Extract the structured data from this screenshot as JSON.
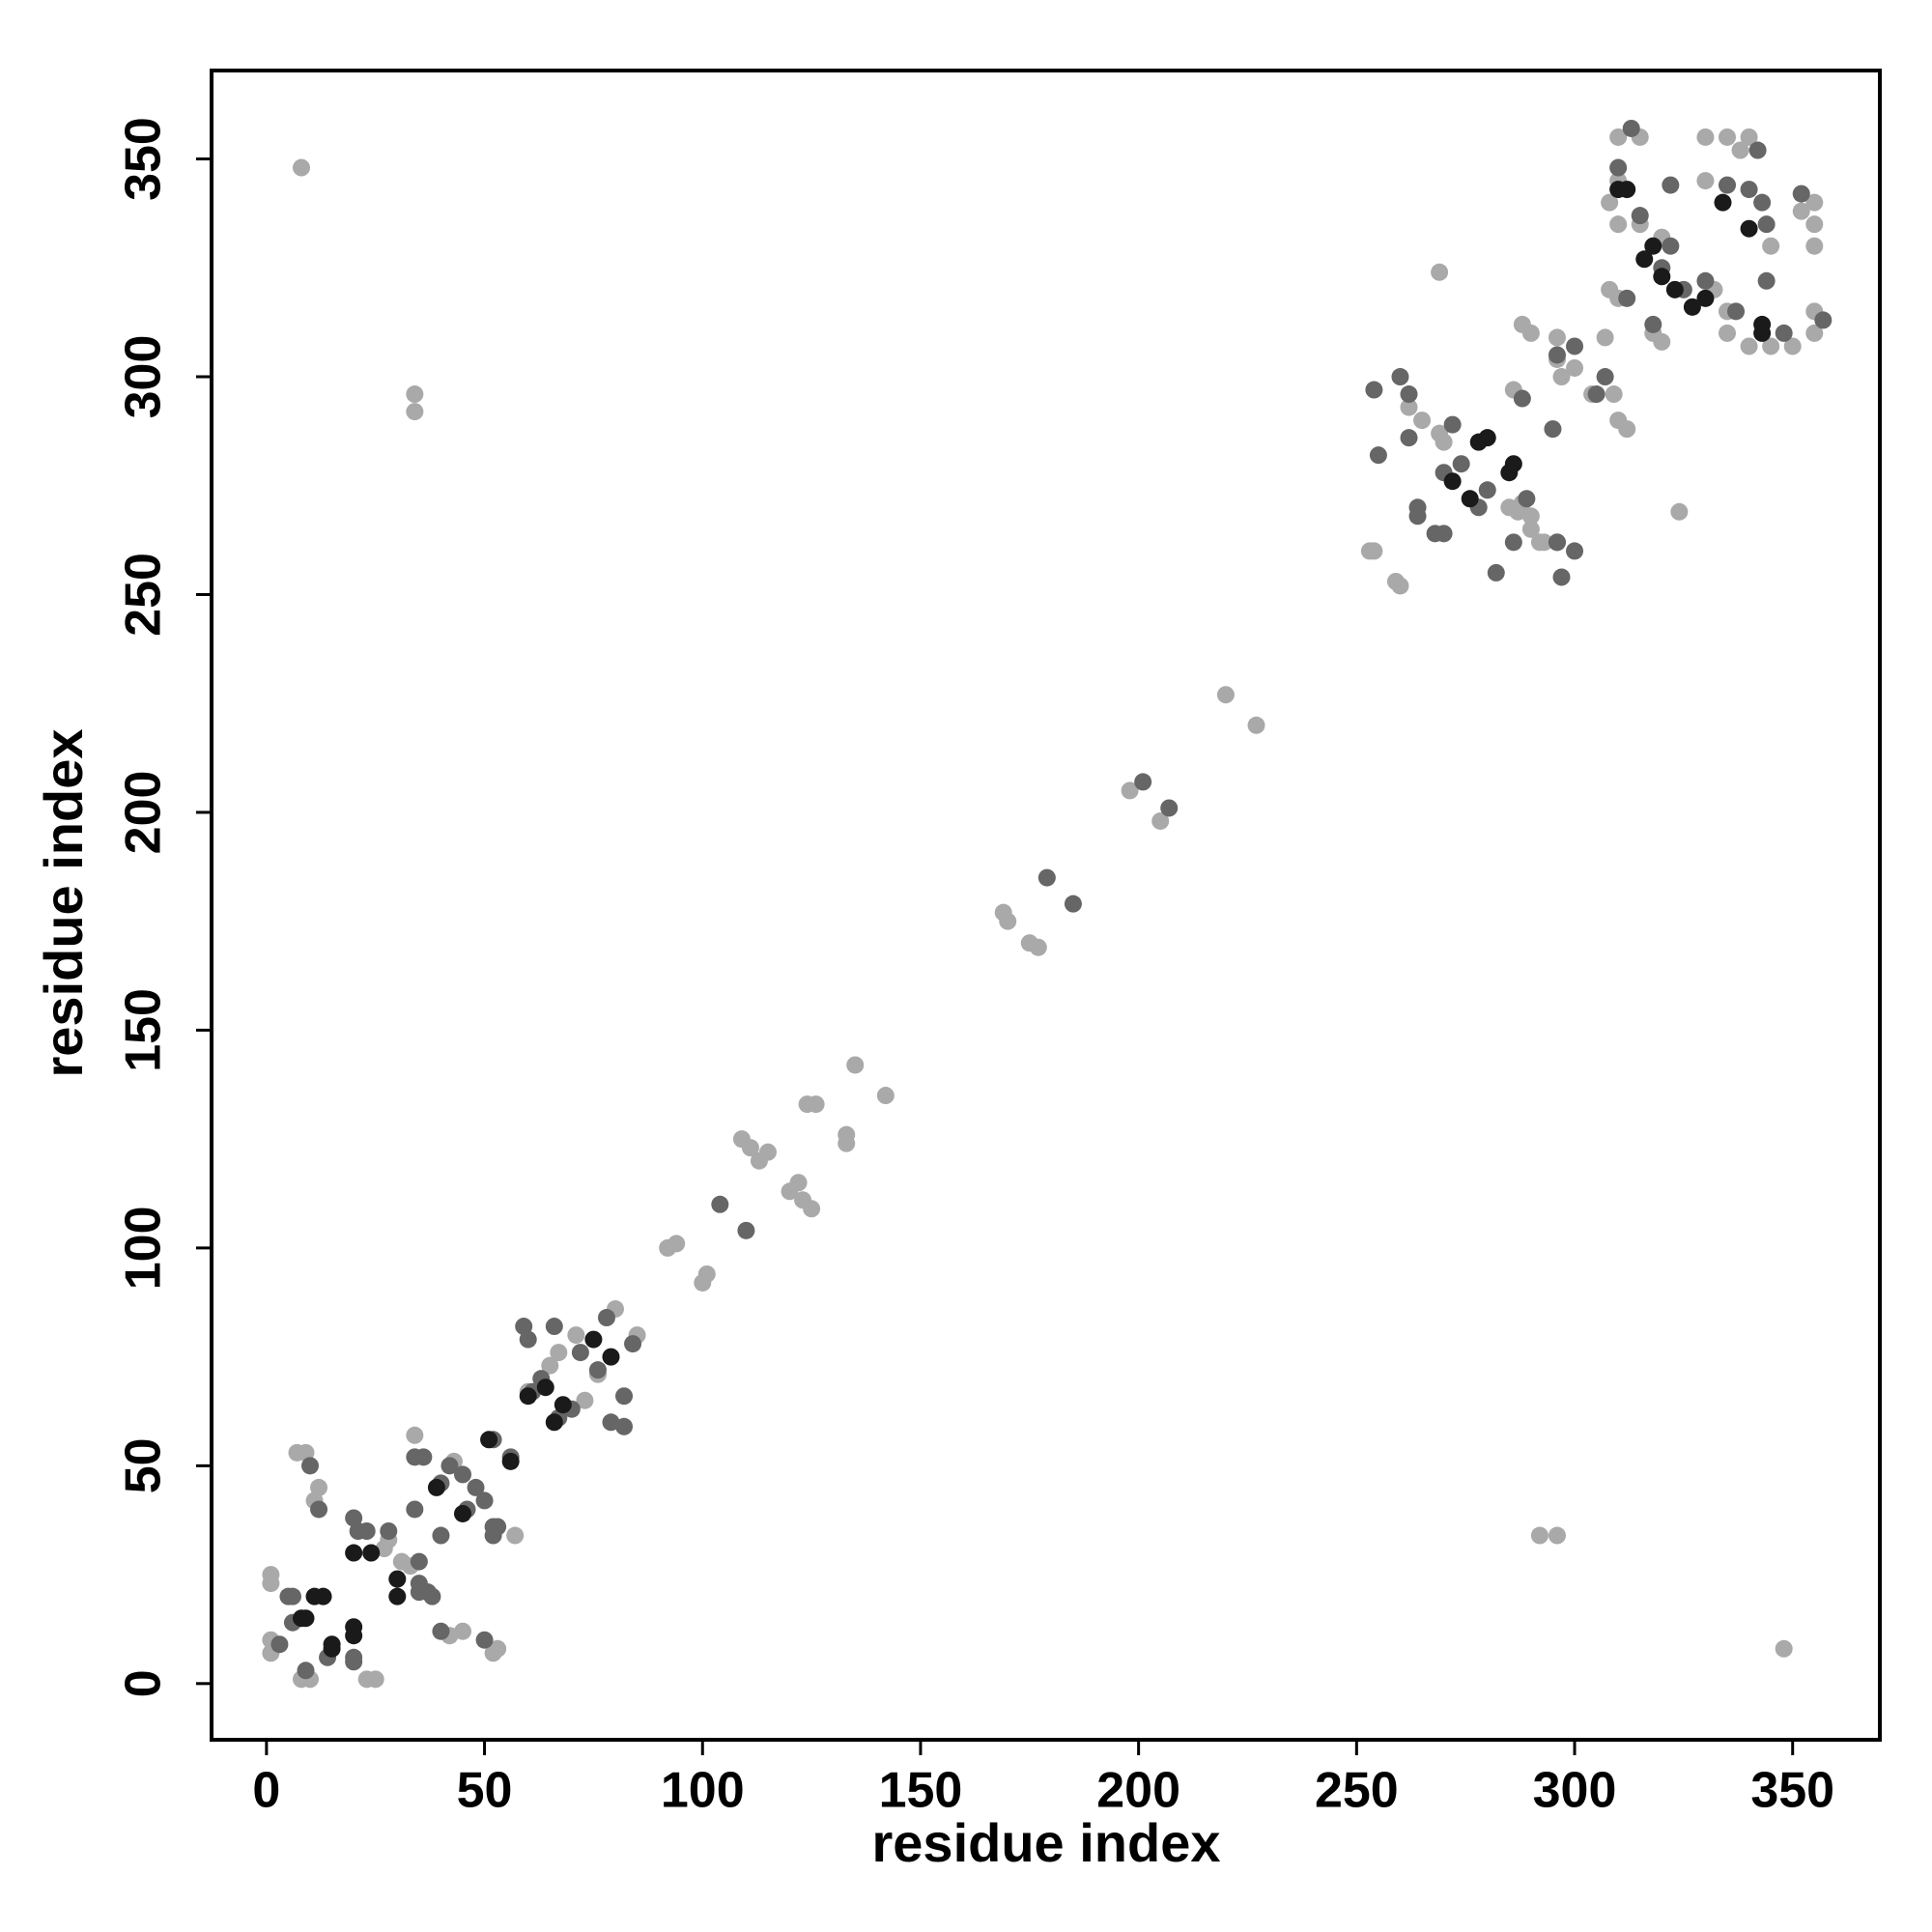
{
  "chart_data": {
    "type": "scatter",
    "xlabel": "residue index",
    "ylabel": "residue index",
    "xlim": [
      -12.6,
      370
    ],
    "ylim": [
      -12.9,
      370.3
    ],
    "xticks": [
      0,
      50,
      100,
      150,
      200,
      250,
      300,
      350
    ],
    "yticks": [
      0,
      50,
      100,
      150,
      200,
      250,
      300,
      350
    ],
    "series": [
      {
        "color": "#a9a9a9",
        "x": [
          8,
          348,
          34,
          34,
          292,
          296,
          269,
          324,
          1,
          1,
          1,
          1,
          7,
          9,
          8,
          10,
          23,
          25,
          12,
          11,
          34,
          33,
          31,
          28,
          27,
          43,
          42,
          45,
          53,
          52,
          57,
          60,
          65,
          67,
          71,
          76,
          73,
          80,
          85,
          92,
          94,
          101,
          100,
          109,
          111,
          113,
          115,
          120,
          122,
          123,
          125,
          124,
          126,
          133,
          133,
          135,
          142,
          169,
          170,
          175,
          177,
          198,
          205,
          220,
          227,
          254,
          259,
          260,
          253,
          262,
          265,
          269,
          270,
          287,
          290,
          293,
          285,
          288,
          290,
          292,
          286,
          300,
          297,
          304,
          310,
          312,
          288,
          290,
          296,
          296,
          309,
          307,
          310,
          315,
          310,
          308,
          310,
          330,
          335,
          340,
          355,
          355,
          355,
          355,
          355,
          350,
          345,
          340,
          335,
          332,
          320,
          310,
          308,
          320,
          318,
          330,
          345,
          338,
          352,
          315,
          335
        ],
        "values": [
          348,
          8,
          296,
          292,
          34,
          34,
          324,
          269,
          25,
          23,
          10,
          7,
          53,
          53,
          1,
          1,
          1,
          1,
          45,
          42,
          57,
          27,
          28,
          33,
          31,
          51,
          11,
          12,
          8,
          7,
          34,
          67,
          73,
          76,
          80,
          71,
          65,
          86,
          80,
          100,
          101,
          94,
          92,
          125,
          123,
          120,
          122,
          113,
          115,
          111,
          109,
          133,
          133,
          124,
          126,
          142,
          135,
          177,
          175,
          170,
          169,
          205,
          198,
          227,
          220,
          260,
          253,
          252,
          260,
          293,
          290,
          287,
          285,
          269,
          265,
          262,
          270,
          271,
          268,
          262,
          297,
          302,
          300,
          296,
          290,
          288,
          312,
          310,
          304,
          309,
          296,
          309,
          355,
          355,
          345,
          340,
          335,
          355,
          355,
          355,
          340,
          335,
          330,
          315,
          310,
          307,
          307,
          307,
          310,
          320,
          332,
          318,
          320,
          308,
          310,
          345,
          330,
          352,
          338,
          335,
          315
        ]
      },
      {
        "color": "#666666",
        "x": [
          5,
          6,
          3,
          9,
          14,
          20,
          10,
          50,
          12,
          40,
          20,
          38,
          20,
          6,
          23,
          35,
          28,
          35,
          34,
          52,
          35,
          21,
          37,
          40,
          34,
          46,
          40,
          48,
          45,
          50,
          42,
          52,
          36,
          53,
          56,
          52,
          59,
          82,
          60,
          79,
          66,
          82,
          67,
          61,
          70,
          63,
          76,
          72,
          78,
          84,
          104,
          110,
          179,
          185,
          201,
          207,
          254,
          297,
          255,
          282,
          260,
          300,
          262,
          296,
          264,
          270,
          268,
          264,
          272,
          289,
          274,
          280,
          278,
          270,
          286,
          262,
          295,
          288,
          296,
          300,
          307,
          305,
          296,
          315,
          337,
          318,
          312,
          320,
          325,
          322,
          330,
          340,
          343,
          344,
          335,
          348,
          310,
          342,
          352,
          344,
          322,
          357,
          313
        ],
        "values": [
          20,
          14,
          9,
          3,
          6,
          5,
          50,
          10,
          40,
          12,
          38,
          20,
          6,
          20,
          35,
          23,
          35,
          28,
          52,
          34,
          21,
          35,
          21,
          34,
          40,
          40,
          46,
          45,
          48,
          42,
          50,
          36,
          52,
          36,
          52,
          56,
          82,
          59,
          79,
          60,
          82,
          66,
          61,
          67,
          63,
          70,
          72,
          76,
          84,
          78,
          110,
          104,
          185,
          179,
          207,
          201,
          297,
          254,
          282,
          255,
          300,
          260,
          296,
          262,
          270,
          264,
          264,
          268,
          289,
          272,
          280,
          274,
          270,
          278,
          262,
          286,
          288,
          295,
          262,
          307,
          300,
          296,
          305,
          337,
          315,
          312,
          318,
          325,
          320,
          330,
          322,
          343,
          340,
          335,
          344,
          310,
          348,
          352,
          342,
          322,
          344,
          313,
          357
        ]
      },
      {
        "color": "#1a1a1a",
        "x": [
          8,
          15,
          11,
          20,
          15,
          9,
          20,
          13,
          24,
          30,
          30,
          20,
          39,
          45,
          51,
          56,
          60,
          66,
          64,
          68,
          75,
          79,
          272,
          276,
          278,
          285,
          280,
          286,
          312,
          343,
          320,
          323,
          327,
          316,
          330,
          318,
          343,
          310,
          334,
          340
        ],
        "values": [
          15,
          8,
          20,
          11,
          9,
          15,
          13,
          20,
          30,
          24,
          20,
          30,
          45,
          39,
          56,
          51,
          66,
          60,
          68,
          64,
          79,
          75,
          276,
          272,
          285,
          278,
          286,
          280,
          343,
          312,
          323,
          320,
          316,
          327,
          318,
          330,
          310,
          343,
          340,
          334
        ]
      }
    ]
  }
}
